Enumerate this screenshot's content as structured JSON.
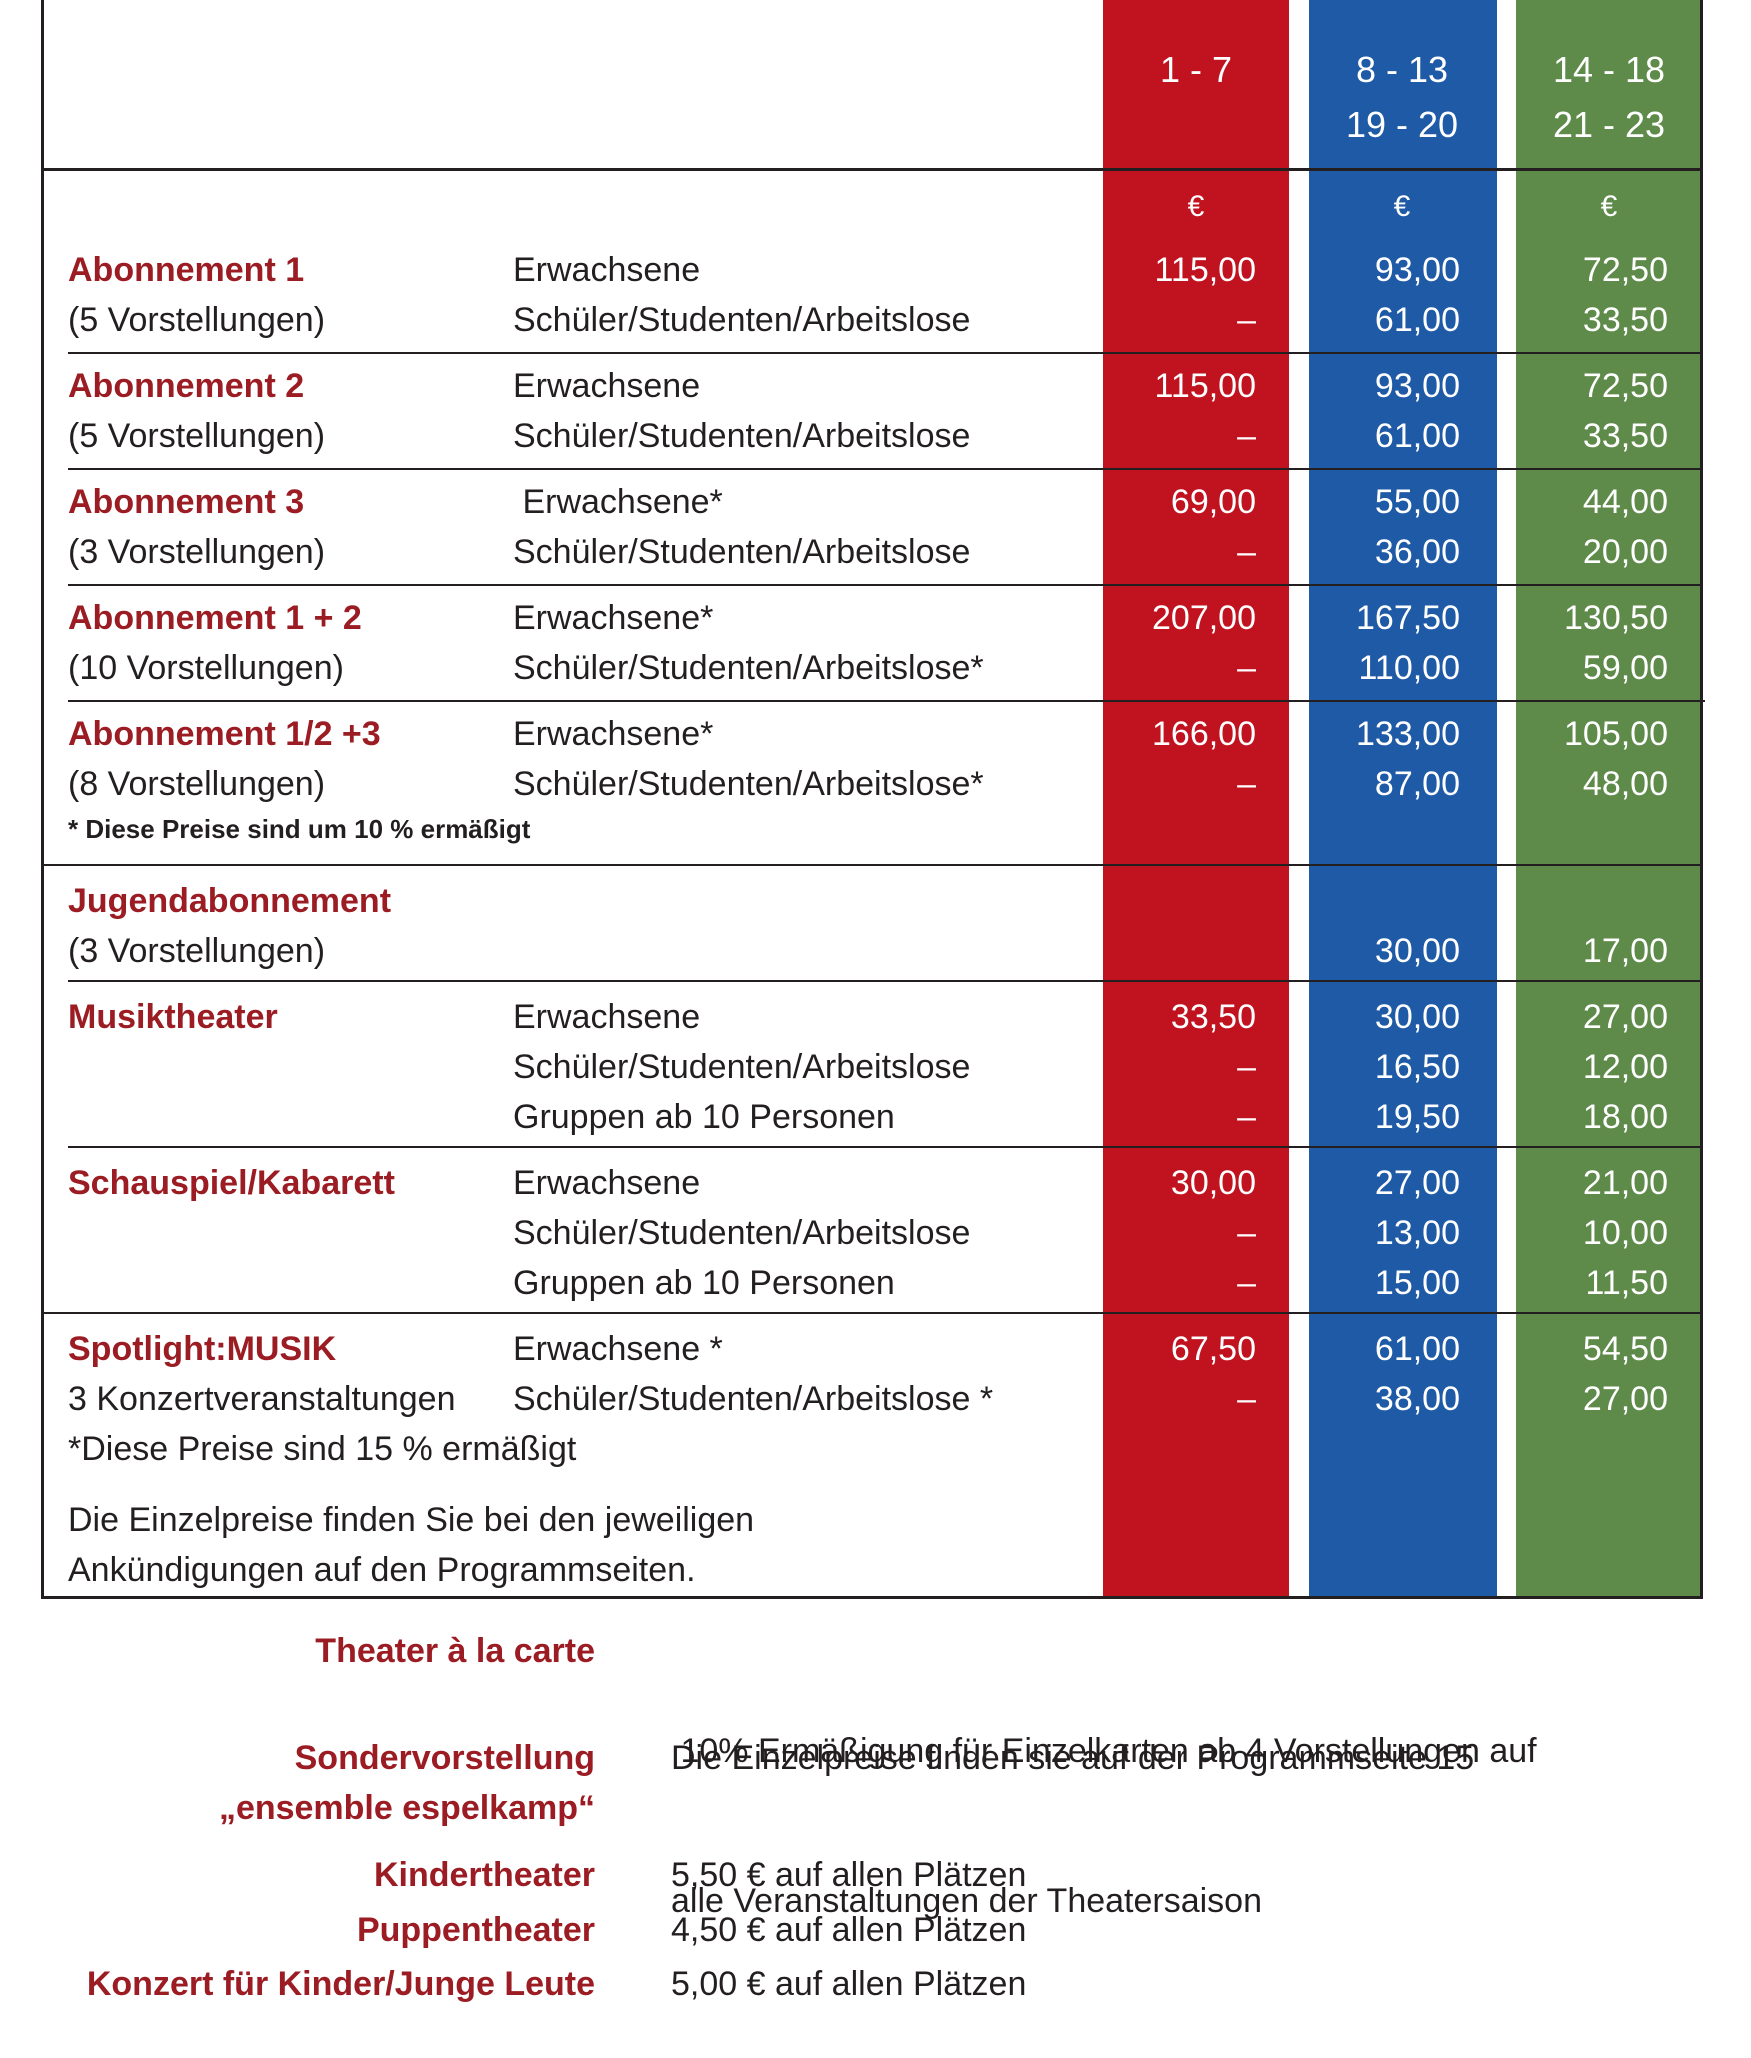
{
  "columns": [
    {
      "header_line1": "1 - 7",
      "header_line2": "",
      "currency": "€",
      "color": "#c1121f"
    },
    {
      "header_line1": "8 - 13",
      "header_line2": "19 - 20",
      "currency": "€",
      "color": "#1f5aa6"
    },
    {
      "header_line1": "14 - 18",
      "header_line2": "21 - 23",
      "currency": "€",
      "color": "#5e8a4a"
    }
  ],
  "packages": [
    {
      "name": "Abonnement 1",
      "subtitle": "(5 Vorstellungen)",
      "categories": [
        "Erwachsene",
        "Schüler/Studenten/Arbeitslose"
      ],
      "prices_red": [
        "115,00",
        "–"
      ],
      "prices_blue": [
        "93,00",
        "61,00"
      ],
      "prices_green": [
        "72,50",
        "33,50"
      ]
    },
    {
      "name": "Abonnement 2",
      "subtitle": "(5 Vorstellungen)",
      "categories": [
        "Erwachsene",
        "Schüler/Studenten/Arbeitslose"
      ],
      "prices_red": [
        "115,00",
        "–"
      ],
      "prices_blue": [
        "93,00",
        "61,00"
      ],
      "prices_green": [
        "72,50",
        "33,50"
      ]
    },
    {
      "name": "Abonnement 3",
      "subtitle": "(3 Vorstellungen)",
      "categories": [
        " Erwachsene*",
        "Schüler/Studenten/Arbeitslose"
      ],
      "prices_red": [
        "69,00",
        "–"
      ],
      "prices_blue": [
        "55,00",
        "36,00"
      ],
      "prices_green": [
        "44,00",
        "20,00"
      ]
    },
    {
      "name": "Abonnement 1 + 2",
      "subtitle": "(10 Vorstellungen)",
      "categories": [
        "Erwachsene*",
        "Schüler/Studenten/Arbeitslose*"
      ],
      "prices_red": [
        "207,00",
        "–"
      ],
      "prices_blue": [
        "167,50",
        "110,00"
      ],
      "prices_green": [
        "130,50",
        "59,00"
      ]
    },
    {
      "name": "Abonnement 1/2 +3",
      "subtitle": "(8 Vorstellungen)",
      "categories": [
        "Erwachsene*",
        "Schüler/Studenten/Arbeitslose*"
      ],
      "prices_red": [
        "166,00",
        "–"
      ],
      "prices_blue": [
        "133,00",
        "87,00"
      ],
      "prices_green": [
        "105,00",
        "48,00"
      ],
      "note": "* Diese Preise sind um 10 % ermäßigt"
    },
    {
      "name": "Jugendabonnement",
      "subtitle": "(3 Vorstellungen)",
      "prices_blue": [
        "30,00"
      ],
      "prices_green": [
        "17,00"
      ]
    },
    {
      "name": "Musiktheater",
      "categories": [
        "Erwachsene",
        "Schüler/Studenten/Arbeitslose",
        "Gruppen ab 10 Personen"
      ],
      "prices_red": [
        "33,50",
        "–",
        "–"
      ],
      "prices_blue": [
        "30,00",
        "16,50",
        "19,50"
      ],
      "prices_green": [
        "27,00",
        "12,00",
        "18,00"
      ]
    },
    {
      "name": "Schauspiel/Kabarett",
      "categories": [
        "Erwachsene",
        "Schüler/Studenten/Arbeitslose",
        "Gruppen ab 10 Personen"
      ],
      "prices_red": [
        "30,00",
        "–",
        "–"
      ],
      "prices_blue": [
        "27,00",
        "13,00",
        "15,00"
      ],
      "prices_green": [
        "21,00",
        "10,00",
        "11,50"
      ]
    },
    {
      "name": "Spotlight:MUSIK",
      "subtitle": "3 Konzertveranstaltungen",
      "categories": [
        "Erwachsene *",
        "Schüler/Studenten/Arbeitslose *"
      ],
      "prices_red": [
        "67,50",
        "–"
      ],
      "prices_blue": [
        "61,00",
        "38,00"
      ],
      "prices_green": [
        "54,50",
        "27,00"
      ],
      "note": "*Diese Preise sind 15 % ermäßigt"
    }
  ],
  "single_prices_note": [
    "Die Einzelpreise finden Sie bei den jeweiligen",
    "Ankündigungen auf den Programmseiten."
  ],
  "extras": [
    {
      "label": [
        "Theater à la carte"
      ],
      "text": [
        " 10% Ermäßigung für Einzelkarten ab 4 Vorstellungen auf",
        "alle Veranstaltungen der Theatersaison"
      ]
    },
    {
      "label": [
        "Sondervorstellung",
        "„ensemble espelkamp“"
      ],
      "text": [
        "Die Einzelpreise finden sie auf der Programmseite 15"
      ]
    },
    {
      "label": [
        "Kindertheater"
      ],
      "text": [
        "5,50 € auf allen Plätzen"
      ]
    },
    {
      "label": [
        "Puppentheater"
      ],
      "text": [
        "4,50 € auf allen Plätzen"
      ]
    },
    {
      "label": [
        "Konzert für Kinder/Junge Leute"
      ],
      "text": [
        "5,00 € auf allen Plätzen"
      ]
    }
  ]
}
